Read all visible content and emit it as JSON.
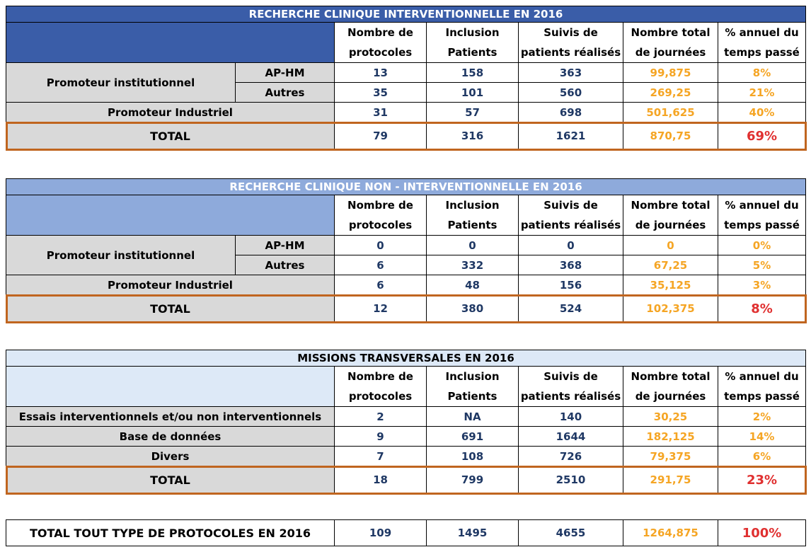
{
  "headers": [
    "Nombre de protocoles",
    "Inclusion Patients",
    "Suivis de patients réalisés",
    "Nombre total de journées",
    "% annuel du temps passé"
  ],
  "t1": {
    "title": "RECHERCHE CLINIQUE INTERVENTIONNELLE EN 2016",
    "group": "Promoteur institutionnel",
    "rows": [
      {
        "label": "AP-HM",
        "v": [
          "13",
          "158",
          "363",
          "99,875",
          "8%"
        ]
      },
      {
        "label": "Autres",
        "v": [
          "35",
          "101",
          "560",
          "269,25",
          "21%"
        ]
      },
      {
        "label": "Promoteur Industriel",
        "v": [
          "31",
          "57",
          "698",
          "501,625",
          "40%"
        ]
      }
    ],
    "total": {
      "label": "TOTAL",
      "v": [
        "79",
        "316",
        "1621",
        "870,75",
        "69%"
      ]
    }
  },
  "t2": {
    "title": "RECHERCHE CLINIQUE NON - INTERVENTIONNELLE EN 2016",
    "group": "Promoteur institutionnel",
    "rows": [
      {
        "label": "AP-HM",
        "v": [
          "0",
          "0",
          "0",
          "0",
          "0%"
        ]
      },
      {
        "label": "Autres",
        "v": [
          "6",
          "332",
          "368",
          "67,25",
          "5%"
        ]
      },
      {
        "label": "Promoteur Industriel",
        "v": [
          "6",
          "48",
          "156",
          "35,125",
          "3%"
        ]
      }
    ],
    "total": {
      "label": "TOTAL",
      "v": [
        "12",
        "380",
        "524",
        "102,375",
        "8%"
      ]
    }
  },
  "t3": {
    "title": "MISSIONS TRANSVERSALES EN 2016",
    "rows": [
      {
        "label": "Essais interventionnels et/ou non interventionnels",
        "v": [
          "2",
          "NA",
          "140",
          "30,25",
          "2%"
        ]
      },
      {
        "label": "Base de données",
        "v": [
          "9",
          "691",
          "1644",
          "182,125",
          "14%"
        ]
      },
      {
        "label": "Divers",
        "v": [
          "7",
          "108",
          "726",
          "79,375",
          "6%"
        ]
      }
    ],
    "total": {
      "label": "TOTAL",
      "v": [
        "18",
        "799",
        "2510",
        "291,75",
        "23%"
      ]
    }
  },
  "grand": {
    "label": "TOTAL TOUT TYPE DE PROTOCOLES EN 2016",
    "v": [
      "109",
      "1495",
      "4655",
      "1264,875",
      "100%"
    ]
  },
  "colors": {
    "title_dark": "#3a5da8",
    "title_mid": "#8eaadb",
    "title_light": "#dde9f7",
    "number": "#1f3864",
    "days": "#f5a524",
    "pct_total": "#e03030",
    "total_border": "#c0651f"
  }
}
